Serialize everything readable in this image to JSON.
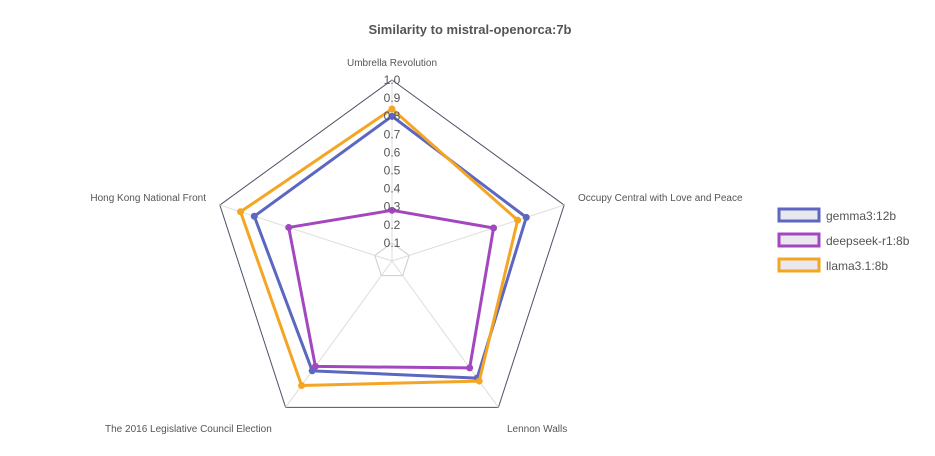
{
  "chart_data": {
    "type": "radar",
    "title": "Similarity to mistral-openorca:7b",
    "axes": [
      "Umbrella Revolution",
      "Occupy Central with Love and Peace",
      "Lennon Walls",
      "The 2016 Legislative Council Election",
      "Hong Kong National Front"
    ],
    "radial_range": [
      0,
      1.0
    ],
    "tick_labels": [
      "0.1",
      "0.2",
      "0.3",
      "0.4",
      "0.5",
      "0.6",
      "0.7",
      "0.8",
      "0.9",
      "1.0"
    ],
    "ring_values": [
      0.1,
      0.2,
      0.3,
      0.4,
      0.5,
      0.6,
      0.7,
      0.8,
      0.9,
      1.0
    ],
    "series": [
      {
        "name": "gemma3:12b",
        "color": "#5b67c0",
        "values": [
          0.8,
          0.78,
          0.8,
          0.75,
          0.8
        ]
      },
      {
        "name": "deepseek-r1:8b",
        "color": "#a347c0",
        "values": [
          0.28,
          0.59,
          0.73,
          0.72,
          0.6
        ]
      },
      {
        "name": "llama3.1:8b",
        "color": "#f5a524",
        "values": [
          0.84,
          0.73,
          0.82,
          0.85,
          0.88
        ]
      }
    ],
    "legend_position": "right",
    "grid": true
  }
}
